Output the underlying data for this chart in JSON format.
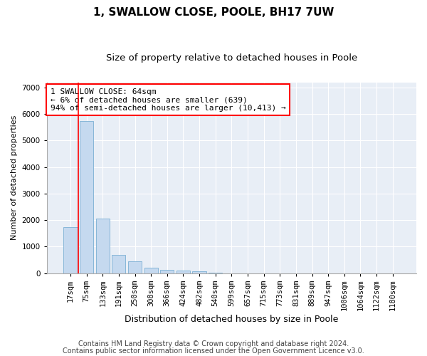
{
  "title": "1, SWALLOW CLOSE, POOLE, BH17 7UW",
  "subtitle": "Size of property relative to detached houses in Poole",
  "xlabel": "Distribution of detached houses by size in Poole",
  "ylabel": "Number of detached properties",
  "categories": [
    "17sqm",
    "75sqm",
    "133sqm",
    "191sqm",
    "250sqm",
    "308sqm",
    "366sqm",
    "424sqm",
    "482sqm",
    "540sqm",
    "599sqm",
    "657sqm",
    "715sqm",
    "773sqm",
    "831sqm",
    "889sqm",
    "947sqm",
    "1006sqm",
    "1064sqm",
    "1122sqm",
    "1180sqm"
  ],
  "values": [
    1750,
    5750,
    2050,
    700,
    450,
    210,
    130,
    90,
    60,
    30,
    0,
    0,
    0,
    0,
    0,
    0,
    0,
    0,
    0,
    0,
    0
  ],
  "bar_color": "#c5d9ef",
  "bar_edge_color": "#7bafd4",
  "annotation_text": "1 SWALLOW CLOSE: 64sqm\n← 6% of detached houses are smaller (639)\n94% of semi-detached houses are larger (10,413) →",
  "annotation_box_color": "white",
  "annotation_box_edge": "red",
  "red_line_color": "red",
  "ylim": [
    0,
    7200
  ],
  "yticks": [
    0,
    1000,
    2000,
    3000,
    4000,
    5000,
    6000,
    7000
  ],
  "background_color": "#e8eef6",
  "footer1": "Contains HM Land Registry data © Crown copyright and database right 2024.",
  "footer2": "Contains public sector information licensed under the Open Government Licence v3.0.",
  "title_fontsize": 11,
  "subtitle_fontsize": 9.5,
  "xlabel_fontsize": 9,
  "ylabel_fontsize": 8,
  "tick_fontsize": 7.5,
  "annotation_fontsize": 8,
  "footer_fontsize": 7
}
